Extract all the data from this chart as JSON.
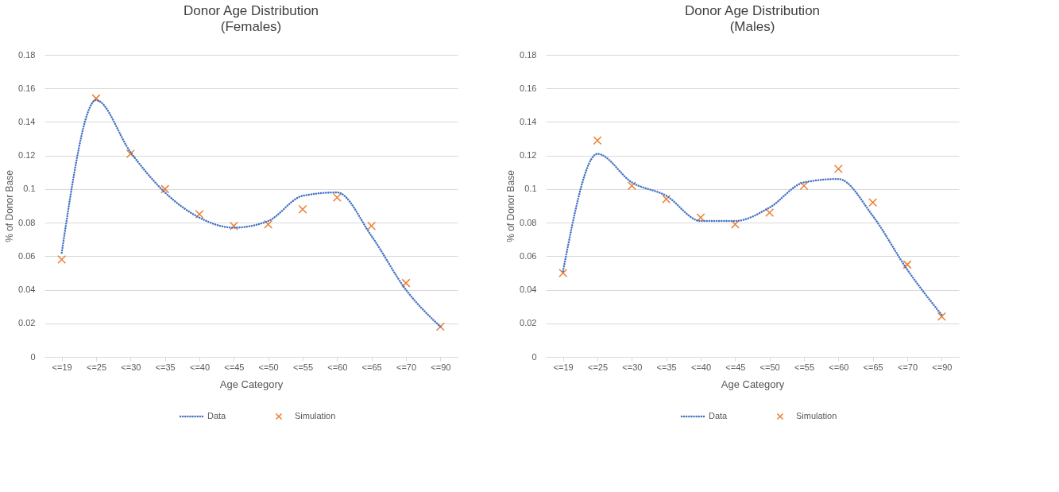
{
  "chart_data": [
    {
      "type": "line",
      "title": "Donor Age Distribution",
      "subtitle": "(Females)",
      "xlabel": "Age Category",
      "ylabel": "% of Donor Base",
      "categories": [
        "<=19",
        "<=25",
        "<=30",
        "<=35",
        "<=40",
        "<=45",
        "<=50",
        "<=55",
        "<=60",
        "<=65",
        "<=70",
        "<=90"
      ],
      "series": [
        {
          "name": "Data",
          "line_style": "dotted",
          "color": "#4472c4",
          "values": [
            0.062,
            0.153,
            0.122,
            0.098,
            0.083,
            0.077,
            0.081,
            0.096,
            0.098,
            0.072,
            0.04,
            0.018
          ]
        },
        {
          "name": "Simulation",
          "type": "scatter",
          "marker": "cross",
          "color": "#ed7d31",
          "values": [
            0.058,
            0.154,
            0.121,
            0.1,
            0.085,
            0.078,
            0.079,
            0.088,
            0.095,
            0.078,
            0.044,
            0.018
          ]
        }
      ],
      "ylim": [
        0,
        0.18
      ],
      "yticks": [
        0,
        0.02,
        0.04,
        0.06,
        0.08,
        0.1,
        0.12,
        0.14,
        0.16,
        0.18
      ],
      "grid": "y",
      "legend": "bottom"
    },
    {
      "type": "line",
      "title": "Donor Age Distribution",
      "subtitle": "(Males)",
      "xlabel": "Age Category",
      "ylabel": "% of Donor Base",
      "categories": [
        "<=19",
        "<=25",
        "<=30",
        "<=35",
        "<=40",
        "<=45",
        "<=50",
        "<=55",
        "<=60",
        "<=65",
        "<=70",
        "<=90"
      ],
      "series": [
        {
          "name": "Data",
          "line_style": "dotted",
          "color": "#4472c4",
          "values": [
            0.051,
            0.121,
            0.104,
            0.096,
            0.081,
            0.081,
            0.089,
            0.104,
            0.106,
            0.084,
            0.052,
            0.025
          ]
        },
        {
          "name": "Simulation",
          "type": "scatter",
          "marker": "cross",
          "color": "#ed7d31",
          "values": [
            0.05,
            0.129,
            0.102,
            0.094,
            0.083,
            0.079,
            0.086,
            0.102,
            0.112,
            0.092,
            0.055,
            0.024
          ]
        }
      ],
      "ylim": [
        0,
        0.18
      ],
      "yticks": [
        0,
        0.02,
        0.04,
        0.06,
        0.08,
        0.1,
        0.12,
        0.14,
        0.16,
        0.18
      ],
      "grid": "y",
      "legend": "bottom"
    }
  ]
}
